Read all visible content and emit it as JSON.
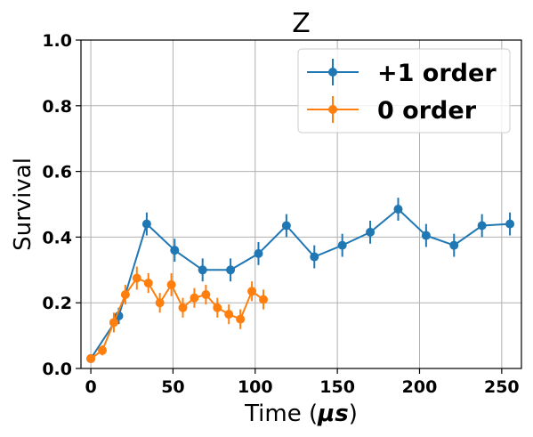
{
  "chart_data": {
    "type": "line",
    "title": "Z",
    "xlabel_text": "Time (",
    "xlabel_unit": "μs",
    "xlabel_close": ")",
    "ylabel": "Survival",
    "xlim": [
      -6,
      262
    ],
    "ylim": [
      0,
      1
    ],
    "x_ticks": [
      0,
      50,
      100,
      150,
      200,
      250
    ],
    "y_ticks": [
      0.0,
      0.2,
      0.4,
      0.6,
      0.8,
      1.0
    ],
    "x_tick_labels": [
      "0",
      "50",
      "100",
      "150",
      "200",
      "250"
    ],
    "y_tick_labels": [
      "0.0",
      "0.2",
      "0.4",
      "0.6",
      "0.8",
      "1.0"
    ],
    "grid": true,
    "legend_position": "top-right",
    "series": [
      {
        "name": "+1 order",
        "color": "#1f77b4",
        "x": [
          0,
          17,
          34,
          51,
          68,
          85,
          102,
          119,
          136,
          153,
          170,
          187,
          204,
          221,
          238,
          255
        ],
        "y": [
          0.03,
          0.16,
          0.44,
          0.36,
          0.3,
          0.3,
          0.35,
          0.435,
          0.34,
          0.375,
          0.415,
          0.485,
          0.405,
          0.375,
          0.435,
          0.44
        ],
        "err": [
          0.01,
          0.025,
          0.035,
          0.035,
          0.035,
          0.035,
          0.035,
          0.035,
          0.035,
          0.035,
          0.035,
          0.035,
          0.035,
          0.035,
          0.035,
          0.035
        ]
      },
      {
        "name": "0 order",
        "color": "#ff7f0e",
        "x": [
          0,
          7,
          14,
          21,
          28,
          35,
          42,
          49,
          56,
          63,
          70,
          77,
          84,
          91,
          98,
          105
        ],
        "y": [
          0.03,
          0.055,
          0.14,
          0.225,
          0.275,
          0.26,
          0.2,
          0.255,
          0.185,
          0.215,
          0.225,
          0.185,
          0.165,
          0.15,
          0.235,
          0.21
        ],
        "err": [
          0.01,
          0.015,
          0.03,
          0.03,
          0.035,
          0.03,
          0.03,
          0.035,
          0.03,
          0.03,
          0.03,
          0.03,
          0.03,
          0.03,
          0.03,
          0.03
        ]
      }
    ]
  }
}
